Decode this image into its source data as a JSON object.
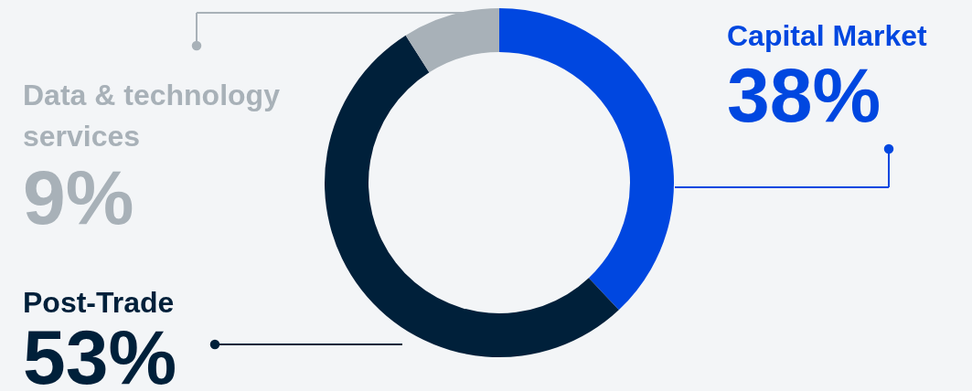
{
  "chart_data": {
    "type": "donut",
    "categories": [
      "Capital Market",
      "Post-Trade",
      "Data & technology services"
    ],
    "values": [
      38,
      53,
      9
    ],
    "value_labels": [
      "38%",
      "53%",
      "9%"
    ],
    "colors": [
      "#0047e0",
      "#00203a",
      "#a8b1b8"
    ]
  }
}
